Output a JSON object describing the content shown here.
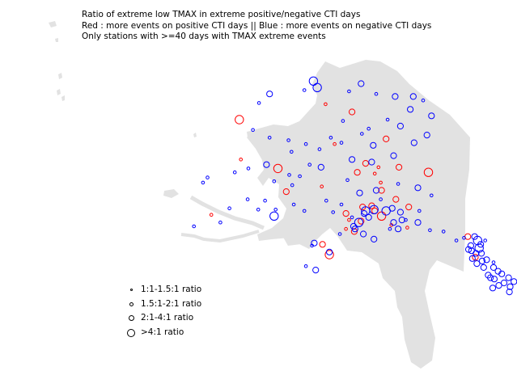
{
  "title": {
    "line1": "Ratio of extreme low TMAX in extreme positive/negative CTI days",
    "line2": "Red : more events on positive CTI days || Blue : more events on negative CTI days",
    "line3": "Only stations with >=40 days with TMAX extreme events"
  },
  "colors": {
    "land": "#e2e2e2",
    "positive": "#ff0000",
    "negative": "#0000ff",
    "legend_symbol": "#000000"
  },
  "legend": {
    "items": [
      {
        "label": "1:1-1.5:1 ratio",
        "size_class": 1
      },
      {
        "label": "1.5:1-2:1 ratio",
        "size_class": 2
      },
      {
        "label": "2:1-4:1 ratio",
        "size_class": 3
      },
      {
        "label": ">4:1 ratio",
        "size_class": 4
      }
    ]
  },
  "chart_data": {
    "type": "scatter",
    "series": [
      {
        "color": "positive",
        "points": [
          [
            -151.7,
            68.9,
            3
          ],
          [
            -147.2,
            66.8,
            3
          ],
          [
            -155.2,
            69.5,
            2
          ],
          [
            -149.9,
            64.9,
            3
          ],
          [
            -145.5,
            64.6,
            3
          ],
          [
            -141.6,
            64.2,
            4
          ],
          [
            -147.8,
            62.8,
            3
          ],
          [
            -150.3,
            61.5,
            3
          ],
          [
            -152.5,
            61.0,
            3
          ],
          [
            -150.5,
            60.4,
            3
          ],
          [
            -149.1,
            61.6,
            3
          ],
          [
            -148.7,
            61.2,
            3
          ],
          [
            -145.9,
            62.1,
            3
          ],
          [
            -144.2,
            61.5,
            3
          ],
          [
            -146.5,
            60.1,
            2
          ],
          [
            -151.4,
            59.6,
            3
          ],
          [
            -155.6,
            58.6,
            3
          ],
          [
            -154.7,
            57.8,
            4
          ],
          [
            -161.5,
            64.5,
            4
          ],
          [
            -166.6,
            68.3,
            4
          ],
          [
            -166.4,
            65.2,
            2
          ],
          [
            -170.3,
            60.9,
            2
          ],
          [
            -151.0,
            64.2,
            3
          ],
          [
            -148.2,
            64.6,
            2
          ],
          [
            -160.4,
            62.7,
            3
          ],
          [
            -152.1,
            60.5,
            2
          ],
          [
            -152.5,
            59.8,
            2
          ],
          [
            -135.4,
            57.6,
            3
          ],
          [
            -136.4,
            59.2,
            3
          ],
          [
            -147.8,
            60.8,
            4
          ],
          [
            -144.4,
            59.9,
            2
          ],
          [
            -148.7,
            64.1,
            2
          ],
          [
            -155.7,
            63.1,
            2
          ],
          [
            -154.0,
            66.4,
            2
          ],
          [
            -147.9,
            63.4,
            2
          ]
        ]
      },
      {
        "color": "negative",
        "points": [
          [
            -156.8,
            71.3,
            4
          ],
          [
            -156.3,
            70.8,
            4
          ],
          [
            -150.5,
            71.1,
            3
          ],
          [
            -148.5,
            70.3,
            2
          ],
          [
            -146.0,
            70.1,
            3
          ],
          [
            -143.6,
            70.1,
            3
          ],
          [
            -152.1,
            70.5,
            2
          ],
          [
            -158.0,
            70.6,
            2
          ],
          [
            -162.6,
            70.3,
            3
          ],
          [
            -164.0,
            69.6,
            2
          ],
          [
            -164.8,
            67.5,
            2
          ],
          [
            -162.6,
            66.9,
            2
          ],
          [
            -160.1,
            66.7,
            2
          ],
          [
            -157.8,
            66.4,
            2
          ],
          [
            -159.7,
            65.8,
            2
          ],
          [
            -163.0,
            64.8,
            3
          ],
          [
            -165.4,
            64.5,
            2
          ],
          [
            -167.2,
            64.2,
            2
          ],
          [
            -160.0,
            64.0,
            2
          ],
          [
            -157.3,
            64.8,
            2
          ],
          [
            -155.8,
            64.6,
            3
          ],
          [
            -151.7,
            65.2,
            3
          ],
          [
            -149.1,
            65.0,
            3
          ],
          [
            -146.2,
            65.5,
            3
          ],
          [
            -143.5,
            66.5,
            3
          ],
          [
            -141.8,
            67.1,
            3
          ],
          [
            -145.3,
            67.8,
            3
          ],
          [
            -149.5,
            67.6,
            2
          ],
          [
            -152.9,
            68.2,
            2
          ],
          [
            -154.5,
            66.9,
            2
          ],
          [
            -156.0,
            66.0,
            2
          ],
          [
            -152.3,
            63.6,
            2
          ],
          [
            -150.7,
            62.6,
            3
          ],
          [
            -148.5,
            62.8,
            3
          ],
          [
            -147.9,
            62.1,
            2
          ],
          [
            -145.6,
            63.3,
            2
          ],
          [
            -143.0,
            63.0,
            3
          ],
          [
            -141.2,
            62.4,
            2
          ],
          [
            -142.8,
            61.2,
            2
          ],
          [
            -145.3,
            61.1,
            3
          ],
          [
            -146.4,
            61.4,
            3
          ],
          [
            -147.2,
            61.2,
            4
          ],
          [
            -148.8,
            61.3,
            4
          ],
          [
            -149.9,
            61.2,
            4
          ],
          [
            -150.1,
            61.0,
            3
          ],
          [
            -149.5,
            60.7,
            3
          ],
          [
            -150.8,
            60.3,
            4
          ],
          [
            -151.3,
            59.8,
            3
          ],
          [
            -151.7,
            60.7,
            2
          ],
          [
            -150.2,
            59.4,
            3
          ],
          [
            -148.8,
            59.0,
            3
          ],
          [
            -146.7,
            59.8,
            2
          ],
          [
            -145.1,
            60.5,
            3
          ],
          [
            -143.0,
            60.3,
            3
          ],
          [
            -145.6,
            59.8,
            3
          ],
          [
            -151.5,
            60.0,
            3
          ],
          [
            -153.3,
            59.4,
            2
          ],
          [
            -156.7,
            58.7,
            3
          ],
          [
            -157.0,
            58.5,
            2
          ],
          [
            -154.7,
            58.0,
            3
          ],
          [
            -156.5,
            56.6,
            3
          ],
          [
            -157.8,
            56.9,
            2
          ],
          [
            -162.0,
            60.8,
            4
          ],
          [
            -161.8,
            61.3,
            2
          ],
          [
            -163.2,
            62.0,
            2
          ],
          [
            -164.1,
            61.3,
            2
          ],
          [
            -165.5,
            62.1,
            2
          ],
          [
            -167.9,
            61.4,
            2
          ],
          [
            -169.1,
            60.3,
            2
          ],
          [
            -172.6,
            60.0,
            2
          ],
          [
            -159.4,
            61.7,
            2
          ],
          [
            -158.0,
            61.2,
            2
          ],
          [
            -171.4,
            63.4,
            2
          ],
          [
            -170.8,
            63.8,
            2
          ],
          [
            -162.0,
            63.5,
            2
          ],
          [
            -159.6,
            63.2,
            2
          ],
          [
            -155.1,
            62.0,
            2
          ],
          [
            -153.1,
            61.7,
            2
          ],
          [
            -154.2,
            61.1,
            2
          ],
          [
            -146.2,
            60.3,
            3
          ],
          [
            -144.6,
            60.5,
            2
          ],
          [
            -141.4,
            59.7,
            2
          ],
          [
            -139.6,
            59.6,
            2
          ],
          [
            -137.9,
            58.9,
            2
          ],
          [
            -136.9,
            59.1,
            2
          ],
          [
            -135.5,
            59.2,
            3
          ],
          [
            -135.1,
            58.9,
            4
          ],
          [
            -134.7,
            58.6,
            3
          ],
          [
            -134.9,
            58.3,
            4
          ],
          [
            -136.3,
            58.2,
            3
          ],
          [
            -135.3,
            57.9,
            3
          ],
          [
            -134.5,
            57.3,
            3
          ],
          [
            -133.9,
            57.4,
            3
          ],
          [
            -135.2,
            57.1,
            3
          ],
          [
            -134.3,
            56.8,
            3
          ],
          [
            -133.0,
            56.8,
            3
          ],
          [
            -132.4,
            56.5,
            3
          ],
          [
            -133.7,
            56.2,
            3
          ],
          [
            -132.9,
            55.9,
            3
          ],
          [
            -131.6,
            55.6,
            3
          ],
          [
            -130.3,
            55.7,
            3
          ],
          [
            -130.8,
            55.3,
            3
          ],
          [
            -132.3,
            55.4,
            3
          ],
          [
            -133.1,
            55.2,
            3
          ],
          [
            -131.0,
            56.0,
            3
          ],
          [
            -135.8,
            57.5,
            3
          ],
          [
            -135.9,
            58.1,
            3
          ],
          [
            -134.6,
            57.9,
            3
          ],
          [
            -136.0,
            58.5,
            3
          ],
          [
            -133.4,
            56.0,
            3
          ],
          [
            -131.9,
            56.3,
            3
          ],
          [
            -133.0,
            57.2,
            2
          ],
          [
            -130.9,
            54.9,
            3
          ],
          [
            -134.1,
            58.9,
            2
          ],
          [
            -153.1,
            66.5,
            2
          ],
          [
            -142.3,
            69.8,
            2
          ],
          [
            -144.0,
            69.1,
            3
          ],
          [
            -141.2,
            68.6,
            3
          ],
          [
            -147.0,
            68.3,
            2
          ],
          [
            -148.9,
            66.3,
            3
          ],
          [
            -150.4,
            67.2,
            2
          ],
          [
            -158.6,
            63.9,
            2
          ]
        ]
      }
    ]
  }
}
